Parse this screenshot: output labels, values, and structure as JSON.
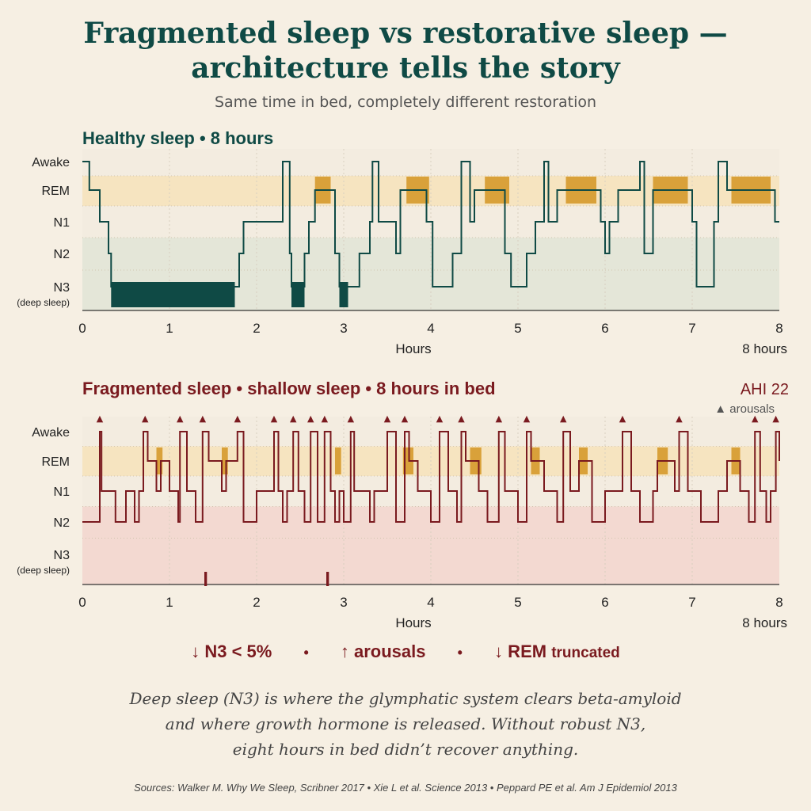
{
  "title_line1": "Fragmented sleep vs restorative sleep —",
  "title_line2": "architecture tells the story",
  "subtitle": "Same time in bed, completely different restoration",
  "colors": {
    "healthy": "#0f4a45",
    "fragmented": "#7a1a1f",
    "rem_fill": "#d9a13a",
    "n3_fill": "#0f4a45",
    "rem_band": "#f6e4c0",
    "healthy_band": "#e4e6d8",
    "fragmented_band": "#f3d9d1",
    "awake_band": "#f3ece0"
  },
  "chart_data": [
    {
      "type": "line",
      "title": "Healthy sleep • 8 hours",
      "xlabel": "Hours",
      "x_end_label": "8 hours",
      "xlim": [
        0,
        8
      ],
      "x_ticks": [
        "0",
        "1",
        "2",
        "3",
        "4",
        "5",
        "6",
        "7",
        "8"
      ],
      "stages": [
        "Awake",
        "REM",
        "N1",
        "N2",
        "N3"
      ],
      "stage_labels": [
        "Awake",
        "REM",
        "N1",
        "N2",
        "N3"
      ],
      "n3_sublabel": "(deep sleep)",
      "hypnogram": [
        [
          0,
          0
        ],
        [
          0.08,
          1
        ],
        [
          0.2,
          2
        ],
        [
          0.3,
          3
        ],
        [
          0.33,
          4
        ],
        [
          1.75,
          4
        ],
        [
          1.8,
          3
        ],
        [
          1.85,
          2
        ],
        [
          2.3,
          0
        ],
        [
          2.38,
          3
        ],
        [
          2.4,
          4
        ],
        [
          2.5,
          4
        ],
        [
          2.55,
          3
        ],
        [
          2.6,
          2
        ],
        [
          2.67,
          1
        ],
        [
          2.85,
          1
        ],
        [
          2.9,
          3
        ],
        [
          2.95,
          4
        ],
        [
          3.15,
          4
        ],
        [
          3.18,
          3
        ],
        [
          3.3,
          2
        ],
        [
          3.33,
          0
        ],
        [
          3.4,
          2
        ],
        [
          3.55,
          2
        ],
        [
          3.6,
          3
        ],
        [
          3.65,
          1
        ],
        [
          3.9,
          1
        ],
        [
          3.95,
          2
        ],
        [
          4.02,
          4
        ],
        [
          4.2,
          4
        ],
        [
          4.25,
          3
        ],
        [
          4.35,
          0
        ],
        [
          4.45,
          2
        ],
        [
          4.5,
          1
        ],
        [
          4.8,
          1
        ],
        [
          4.85,
          3
        ],
        [
          4.92,
          4
        ],
        [
          5.05,
          4
        ],
        [
          5.1,
          3
        ],
        [
          5.2,
          2
        ],
        [
          5.3,
          0
        ],
        [
          5.35,
          2
        ],
        [
          5.45,
          1
        ],
        [
          5.9,
          1
        ],
        [
          5.95,
          2
        ],
        [
          6.0,
          3
        ],
        [
          6.05,
          2
        ],
        [
          6.15,
          1
        ],
        [
          6.4,
          0
        ],
        [
          6.45,
          3
        ],
        [
          6.55,
          1
        ],
        [
          6.95,
          1
        ],
        [
          7.0,
          2
        ],
        [
          7.05,
          4
        ],
        [
          7.2,
          4
        ],
        [
          7.25,
          2
        ],
        [
          7.3,
          0
        ],
        [
          7.4,
          1
        ],
        [
          7.9,
          1
        ],
        [
          7.95,
          2
        ],
        [
          8.0,
          2
        ]
      ],
      "rem_blocks": [
        [
          2.67,
          2.85
        ],
        [
          3.72,
          3.98
        ],
        [
          4.62,
          4.9
        ],
        [
          5.55,
          5.9
        ],
        [
          6.55,
          6.95
        ],
        [
          7.45,
          7.9
        ]
      ],
      "n3_blocks": [
        [
          0.33,
          1.75
        ],
        [
          2.4,
          2.55
        ],
        [
          2.95,
          3.05
        ]
      ]
    },
    {
      "type": "line",
      "title": "Fragmented sleep • shallow sleep • 8 hours in bed",
      "xlabel": "Hours",
      "x_end_label": "8 hours",
      "xlim": [
        0,
        8
      ],
      "x_ticks": [
        "0",
        "1",
        "2",
        "3",
        "4",
        "5",
        "6",
        "7",
        "8"
      ],
      "stages": [
        "Awake",
        "REM",
        "N1",
        "N2",
        "N3"
      ],
      "stage_labels": [
        "Awake",
        "REM",
        "N1",
        "N2",
        "N3"
      ],
      "n3_sublabel": "(deep sleep)",
      "annotation": "AHI 22",
      "arousal_legend": "▲ arousals",
      "arousal_marker": "▲",
      "arousals": [
        0.2,
        0.72,
        1.12,
        1.38,
        1.78,
        2.2,
        2.42,
        2.62,
        2.78,
        3.08,
        3.5,
        3.7,
        4.1,
        4.35,
        4.78,
        5.1,
        5.52,
        6.2,
        6.85,
        7.72,
        7.96
      ],
      "hypnogram": [
        [
          0,
          3
        ],
        [
          0.18,
          3
        ],
        [
          0.2,
          0
        ],
        [
          0.22,
          2
        ],
        [
          0.35,
          2
        ],
        [
          0.38,
          3
        ],
        [
          0.45,
          3
        ],
        [
          0.5,
          2
        ],
        [
          0.6,
          3
        ],
        [
          0.65,
          2
        ],
        [
          0.7,
          0
        ],
        [
          0.75,
          1
        ],
        [
          0.8,
          1
        ],
        [
          0.85,
          2
        ],
        [
          0.9,
          1
        ],
        [
          1.0,
          2
        ],
        [
          1.1,
          3
        ],
        [
          1.12,
          0
        ],
        [
          1.2,
          2
        ],
        [
          1.3,
          3
        ],
        [
          1.38,
          0
        ],
        [
          1.45,
          1
        ],
        [
          1.52,
          1
        ],
        [
          1.6,
          2
        ],
        [
          1.65,
          1
        ],
        [
          1.7,
          1
        ],
        [
          1.78,
          0
        ],
        [
          1.85,
          3
        ],
        [
          2.0,
          2
        ],
        [
          2.1,
          2
        ],
        [
          2.2,
          0
        ],
        [
          2.25,
          2
        ],
        [
          2.3,
          3
        ],
        [
          2.35,
          2
        ],
        [
          2.42,
          0
        ],
        [
          2.48,
          2
        ],
        [
          2.55,
          3
        ],
        [
          2.62,
          0
        ],
        [
          2.7,
          3
        ],
        [
          2.78,
          0
        ],
        [
          2.85,
          2
        ],
        [
          2.9,
          3
        ],
        [
          2.95,
          2
        ],
        [
          3.0,
          3
        ],
        [
          3.08,
          0
        ],
        [
          3.12,
          2
        ],
        [
          3.3,
          3
        ],
        [
          3.35,
          2
        ],
        [
          3.4,
          2
        ],
        [
          3.5,
          0
        ],
        [
          3.6,
          3
        ],
        [
          3.7,
          0
        ],
        [
          3.75,
          1
        ],
        [
          3.8,
          1
        ],
        [
          3.85,
          2
        ],
        [
          4.0,
          3
        ],
        [
          4.1,
          0
        ],
        [
          4.2,
          2
        ],
        [
          4.3,
          3
        ],
        [
          4.35,
          0
        ],
        [
          4.4,
          1
        ],
        [
          4.5,
          1
        ],
        [
          4.55,
          2
        ],
        [
          4.65,
          3
        ],
        [
          4.78,
          0
        ],
        [
          4.85,
          2
        ],
        [
          5.0,
          3
        ],
        [
          5.1,
          0
        ],
        [
          5.15,
          1
        ],
        [
          5.2,
          1
        ],
        [
          5.3,
          2
        ],
        [
          5.45,
          3
        ],
        [
          5.52,
          0
        ],
        [
          5.6,
          2
        ],
        [
          5.7,
          1
        ],
        [
          5.75,
          1
        ],
        [
          5.85,
          3
        ],
        [
          6.0,
          2
        ],
        [
          6.2,
          0
        ],
        [
          6.3,
          2
        ],
        [
          6.4,
          3
        ],
        [
          6.5,
          3
        ],
        [
          6.55,
          2
        ],
        [
          6.6,
          1
        ],
        [
          6.7,
          1
        ],
        [
          6.8,
          2
        ],
        [
          6.85,
          0
        ],
        [
          6.95,
          2
        ],
        [
          7.1,
          3
        ],
        [
          7.3,
          2
        ],
        [
          7.4,
          1
        ],
        [
          7.5,
          1
        ],
        [
          7.55,
          2
        ],
        [
          7.65,
          3
        ],
        [
          7.72,
          0
        ],
        [
          7.78,
          2
        ],
        [
          7.85,
          3
        ],
        [
          7.9,
          2
        ],
        [
          7.96,
          0
        ],
        [
          8.0,
          1
        ]
      ],
      "rem_blocks": [
        [
          0.85,
          0.92
        ],
        [
          1.6,
          1.67
        ],
        [
          2.9,
          2.97
        ],
        [
          3.68,
          3.8
        ],
        [
          4.45,
          4.58
        ],
        [
          5.15,
          5.25
        ],
        [
          5.7,
          5.8
        ],
        [
          6.6,
          6.72
        ],
        [
          7.45,
          7.55
        ]
      ],
      "n3_blocks": [
        [
          1.4,
          1.43
        ],
        [
          2.8,
          2.83
        ]
      ]
    }
  ],
  "takeaways": {
    "n3": "↓ N3 < 5%",
    "arousals": "↑ arousals",
    "rem": "↓ REM",
    "rem_suffix": "truncated",
    "separator": "•"
  },
  "note_lines": [
    "Deep sleep (N3) is where the glymphatic system clears beta-amyloid",
    "and where growth hormone is released. Without robust N3,",
    "eight hours in bed didn’t recover anything."
  ],
  "sources": "Sources: Walker M. Why We Sleep, Scribner 2017 • Xie L et al. Science 2013 • Peppard PE et al. Am J Epidemiol 2013"
}
